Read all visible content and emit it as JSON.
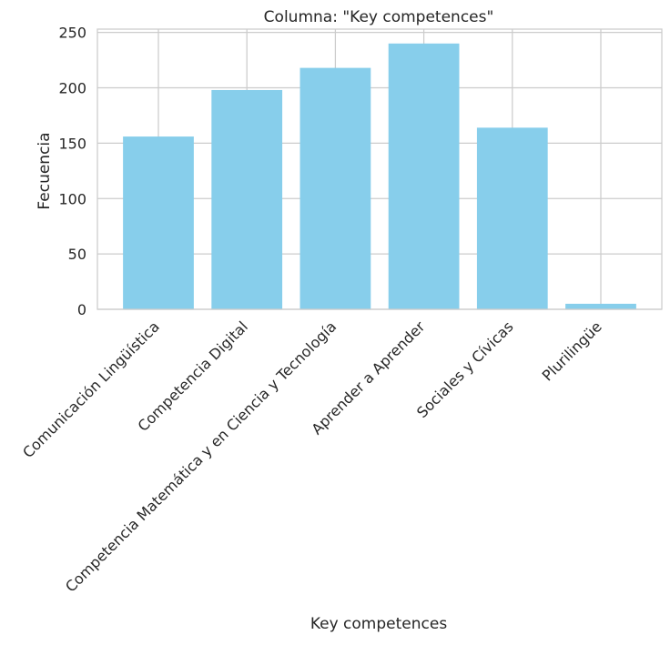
{
  "chart_data": {
    "type": "bar",
    "title": "Columna: \"Key competences\"",
    "xlabel": "Key competences",
    "ylabel": "Fecuencia",
    "categories": [
      "Comunicación Lingüística",
      "Competencia Digital",
      "Competencia Matemática y en Ciencia y Tecnología",
      "Aprender a Aprender",
      "Sociales y Cívicas",
      "Plurilingüe"
    ],
    "values": [
      156,
      198,
      218,
      240,
      164,
      5
    ],
    "ylim": [
      0,
      253
    ],
    "yticks": [
      "0",
      "50",
      "100",
      "150",
      "200",
      "250"
    ],
    "grid": true,
    "bar_color": "#87ceeb",
    "grid_color": "#cccccc",
    "axes_edge_color": "#cccccc"
  }
}
